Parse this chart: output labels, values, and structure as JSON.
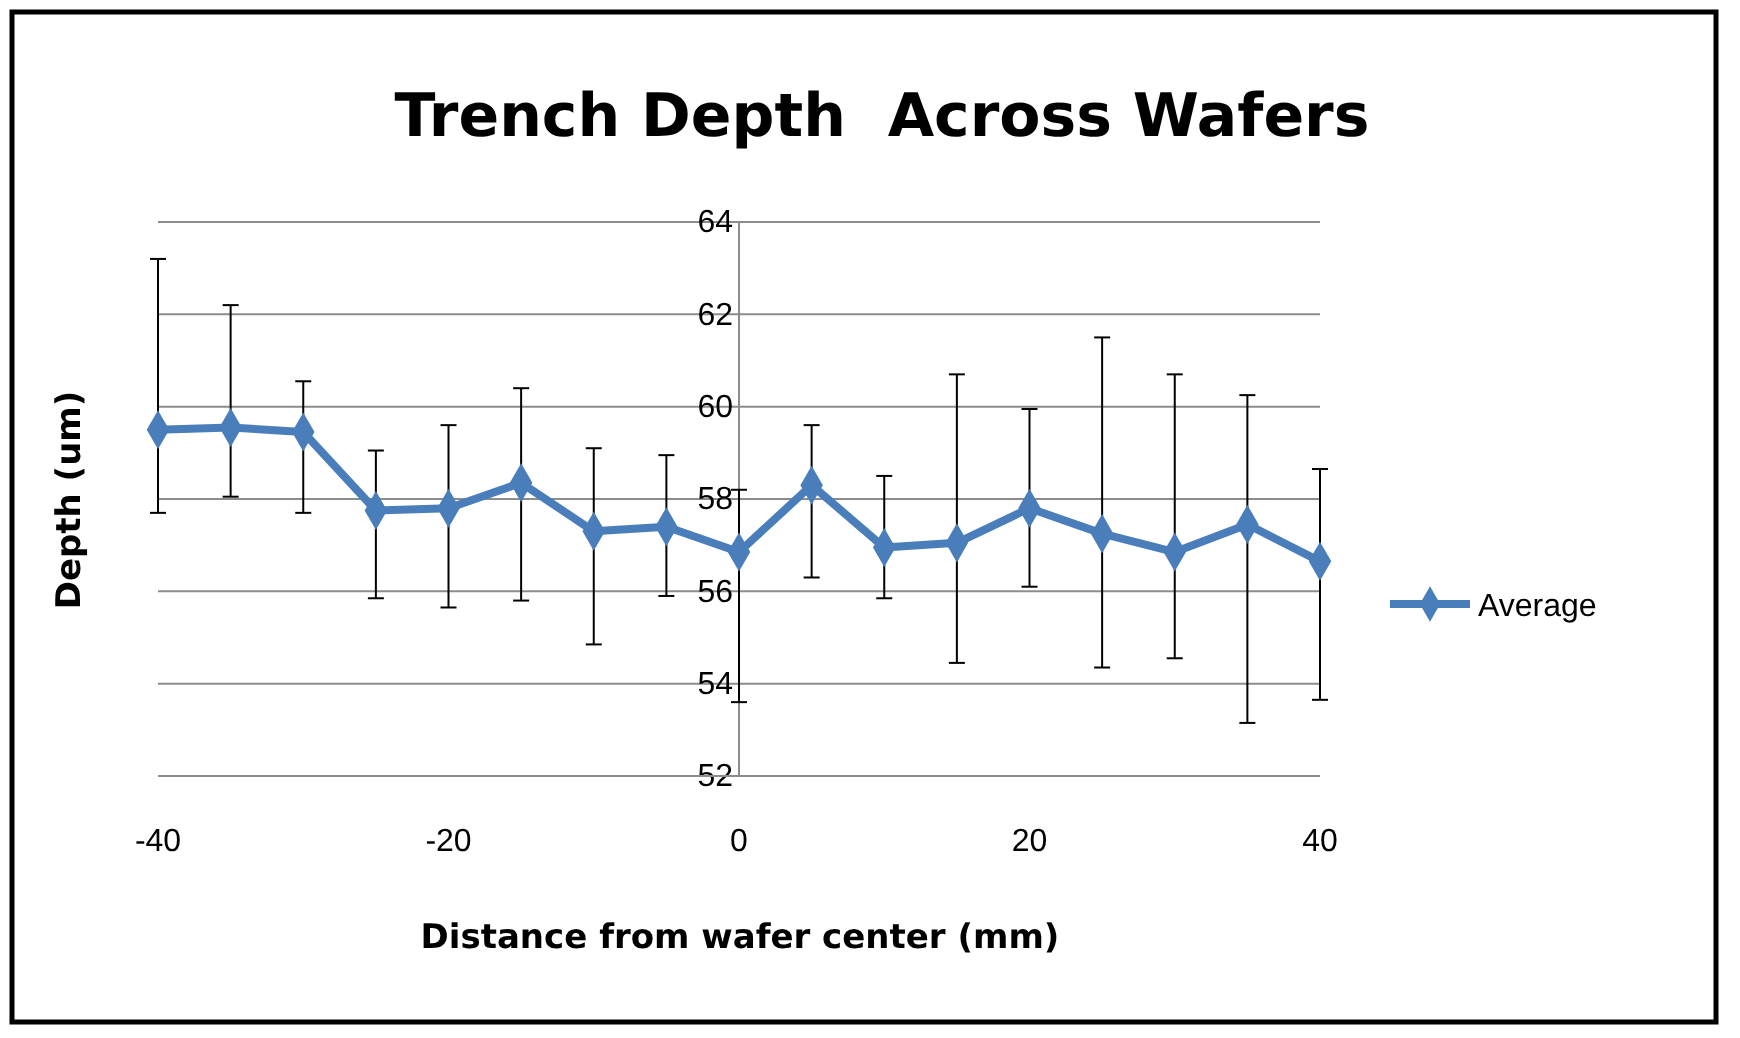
{
  "chart_data": {
    "type": "line",
    "title": "Trench Depth  Across Wafers",
    "xlabel": "Distance from wafer center (mm)",
    "ylabel": "Depth (um)",
    "x": [
      -40,
      -35,
      -30,
      -25,
      -20,
      -15,
      -10,
      -5,
      0,
      5,
      10,
      15,
      20,
      25,
      30,
      35,
      40
    ],
    "series": [
      {
        "name": "Average",
        "color": "#4a7ebb",
        "values": [
          59.5,
          59.55,
          59.45,
          57.75,
          57.8,
          58.35,
          57.3,
          57.4,
          56.85,
          58.3,
          56.95,
          57.05,
          57.8,
          57.25,
          56.85,
          57.45,
          56.65
        ],
        "errors": [
          [
            57.7,
            63.2
          ],
          [
            58.05,
            62.2
          ],
          [
            57.7,
            60.55
          ],
          [
            55.85,
            59.05
          ],
          [
            55.65,
            59.6
          ],
          [
            55.8,
            60.4
          ],
          [
            54.85,
            59.1
          ],
          [
            55.9,
            58.95
          ],
          [
            53.6,
            58.2
          ],
          [
            56.3,
            59.6
          ],
          [
            55.85,
            58.5
          ],
          [
            54.45,
            60.7
          ],
          [
            56.1,
            59.95
          ],
          [
            54.35,
            61.5
          ],
          [
            54.55,
            60.7
          ],
          [
            53.15,
            60.25
          ],
          [
            53.65,
            58.65
          ]
        ]
      }
    ],
    "xlim": [
      -40,
      40
    ],
    "xticks": [
      -40,
      -20,
      0,
      20,
      40
    ],
    "ylim": [
      52,
      64
    ],
    "yticks": [
      52,
      54,
      56,
      58,
      60,
      62,
      64
    ],
    "grid": "y",
    "legend": "right",
    "marker": "diamond",
    "line_style": "solid"
  }
}
